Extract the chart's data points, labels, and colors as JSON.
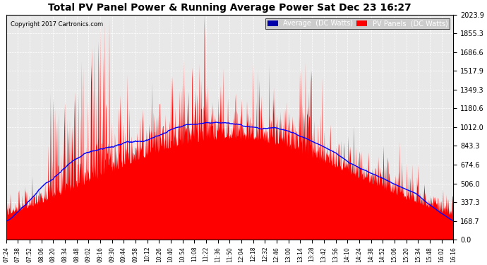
{
  "title": "Total PV Panel Power & Running Average Power Sat Dec 23 16:27",
  "copyright": "Copyright 2017 Cartronics.com",
  "legend_avg": "Average  (DC Watts)",
  "legend_pv": "PV Panels  (DC Watts)",
  "yticks": [
    0.0,
    168.7,
    337.3,
    506.0,
    674.6,
    843.3,
    1012.0,
    1180.6,
    1349.3,
    1517.9,
    1686.6,
    1855.3,
    2023.9
  ],
  "xtick_labels": [
    "07:24",
    "07:38",
    "07:52",
    "08:06",
    "08:20",
    "08:34",
    "08:48",
    "09:02",
    "09:16",
    "09:30",
    "09:44",
    "09:58",
    "10:12",
    "10:26",
    "10:40",
    "10:54",
    "11:08",
    "11:22",
    "11:36",
    "11:50",
    "12:04",
    "12:18",
    "12:32",
    "12:46",
    "13:00",
    "13:14",
    "13:28",
    "13:42",
    "13:56",
    "14:10",
    "14:24",
    "14:38",
    "14:52",
    "15:06",
    "15:20",
    "15:34",
    "15:48",
    "16:02",
    "16:16"
  ],
  "ymax": 2023.9,
  "ymin": 0.0,
  "bg_color": "#ffffff",
  "plot_bg_color": "#e8e8e8",
  "grid_color": "#ffffff",
  "fill_color": "#ff0000",
  "line_color": "#0000ff",
  "title_color": "#000000",
  "copyright_color": "#000000",
  "avg_legend_bg": "#0000aa",
  "pv_legend_bg": "#ff0000"
}
